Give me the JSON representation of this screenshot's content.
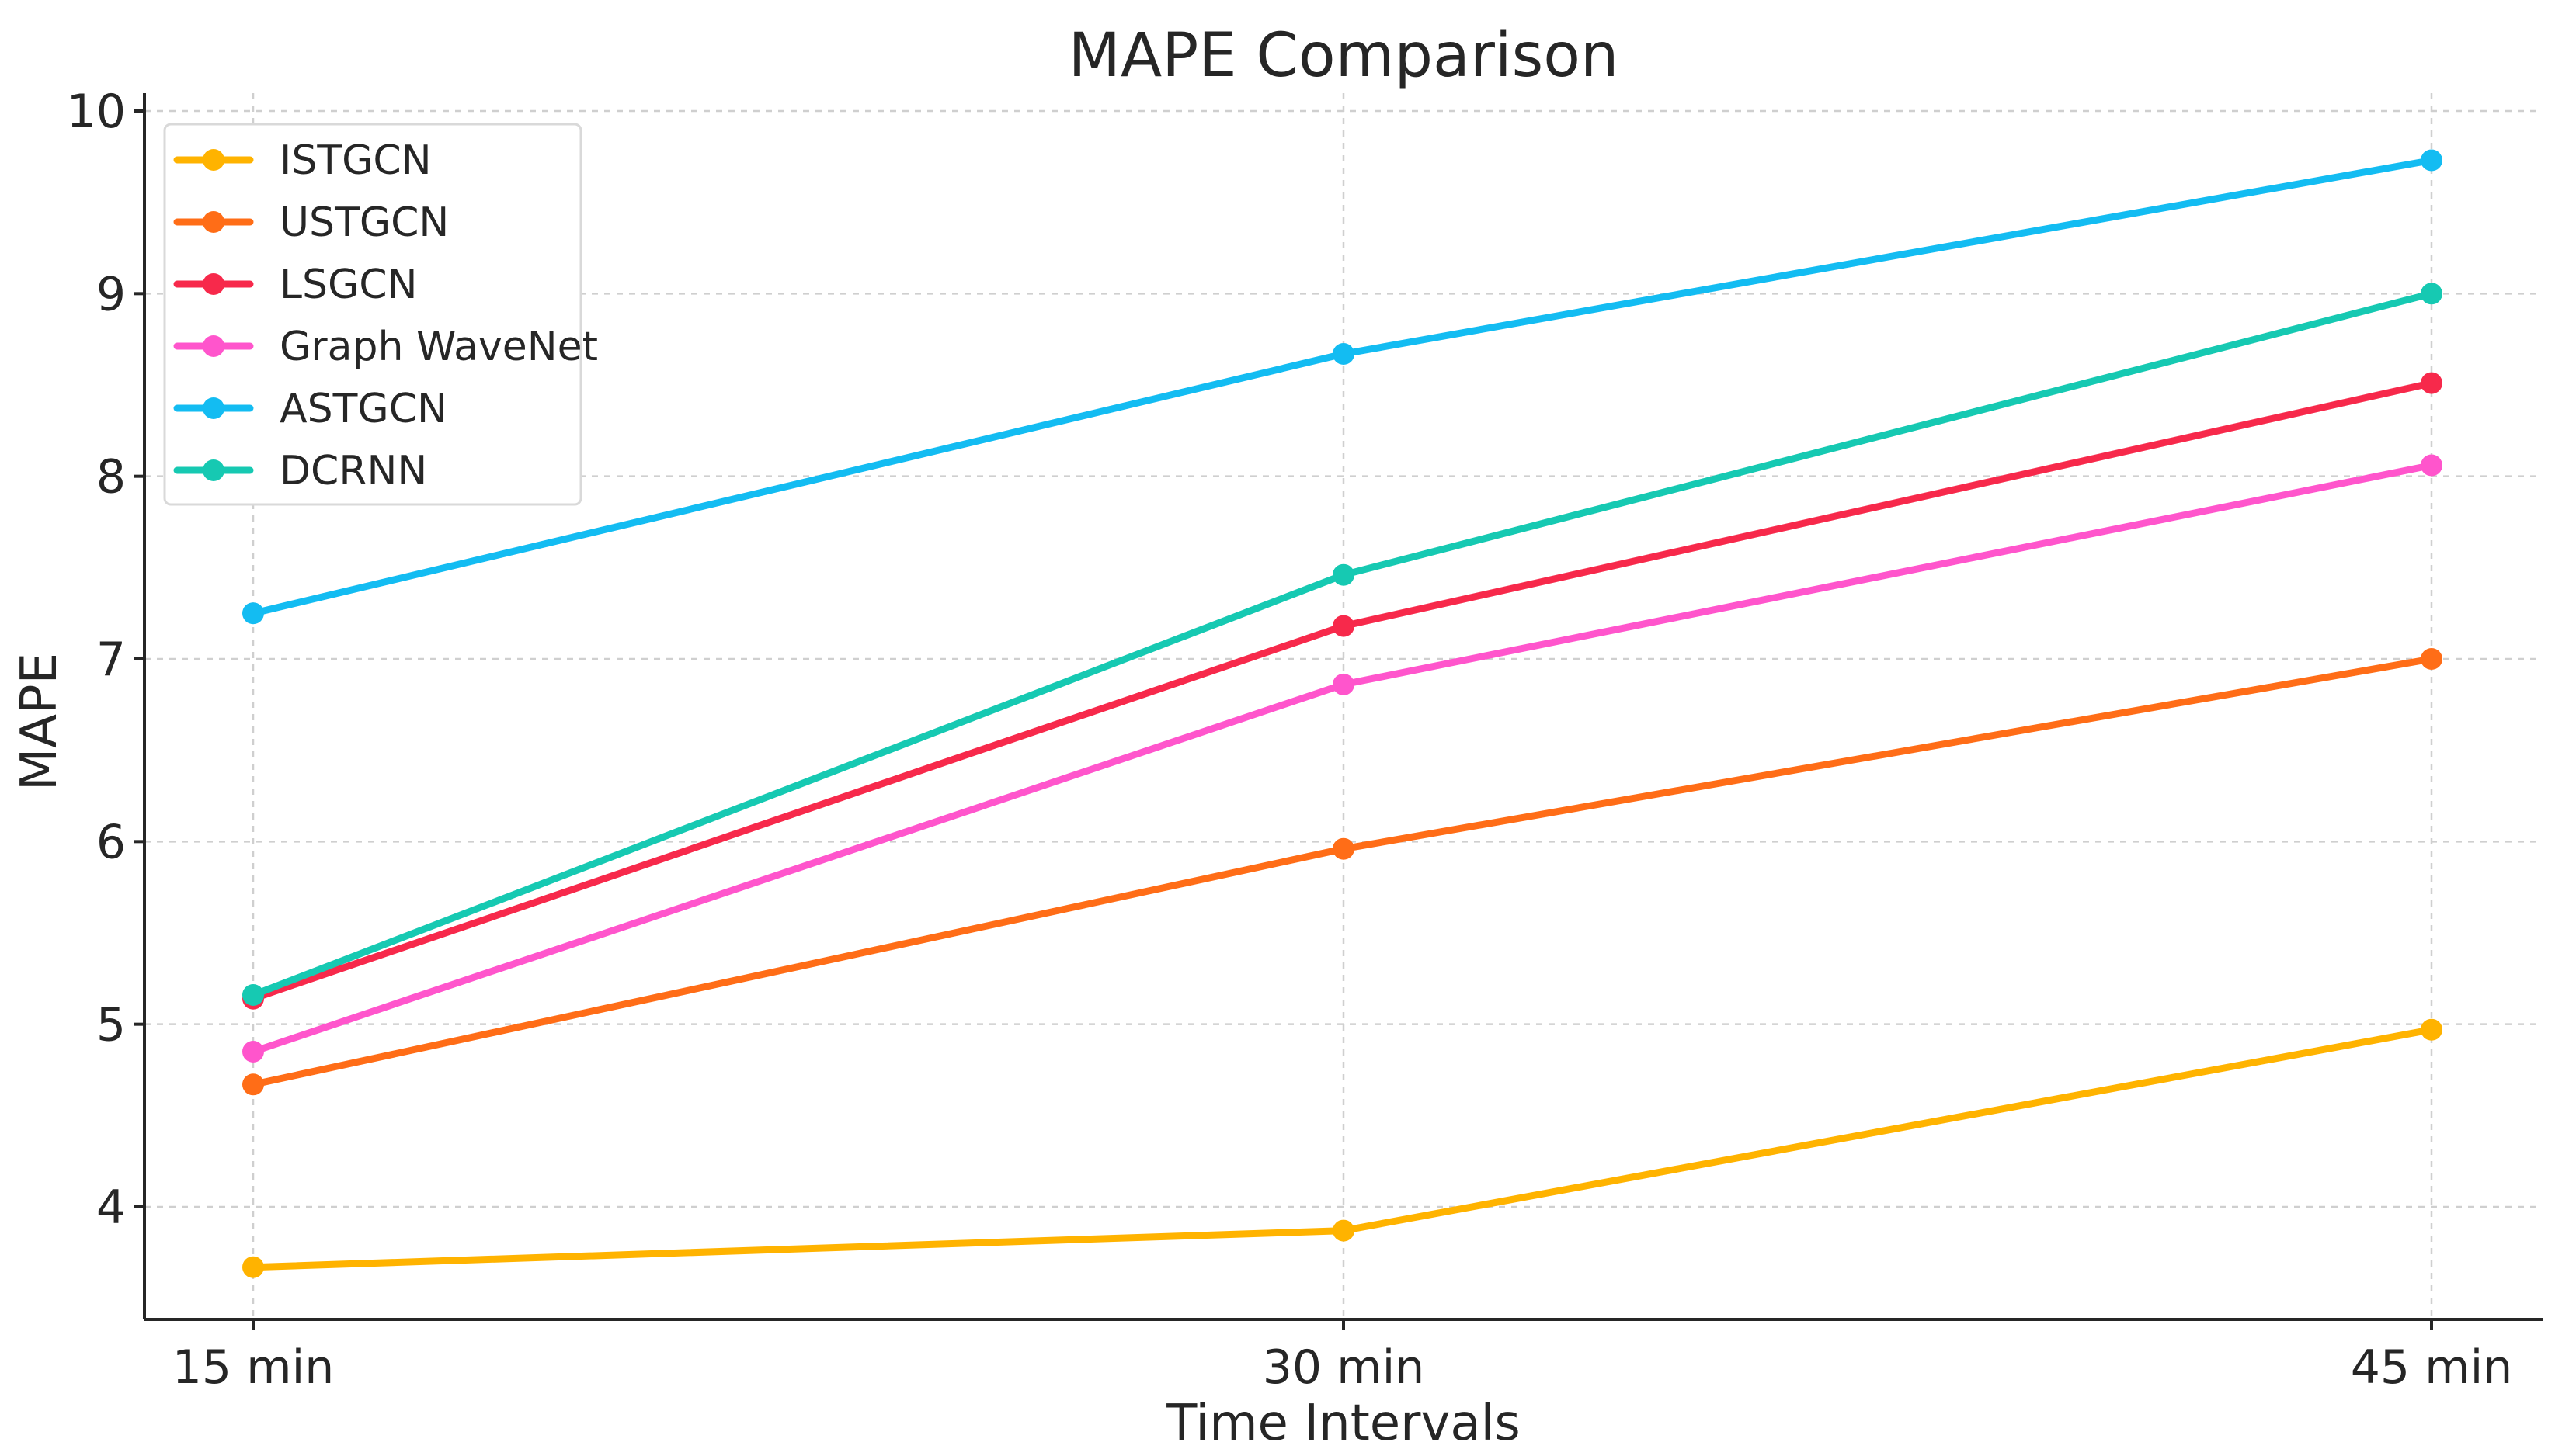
{
  "chart_data": {
    "type": "line",
    "title": "MAPE Comparison",
    "xlabel": "Time Intervals",
    "ylabel": "MAPE",
    "categories": [
      "15 min",
      "30 min",
      "45 min"
    ],
    "ylim": [
      3.35,
      10.0
    ],
    "yticks": [
      4,
      5,
      6,
      7,
      8,
      9,
      10
    ],
    "grid": true,
    "legend_position": "top-left",
    "series": [
      {
        "name": "ISTGCN",
        "color": "#FFB300",
        "values": [
          3.67,
          3.87,
          4.97
        ]
      },
      {
        "name": "USTGCN",
        "color": "#FF6D17",
        "values": [
          4.67,
          5.96,
          7.0
        ]
      },
      {
        "name": "LSGCN",
        "color": "#F7294B",
        "values": [
          5.14,
          7.18,
          8.51
        ]
      },
      {
        "name": "Graph WaveNet",
        "color": "#FF55CC",
        "values": [
          4.85,
          6.86,
          8.06
        ]
      },
      {
        "name": "ASTGCN",
        "color": "#13BCF2",
        "values": [
          7.25,
          8.67,
          9.73
        ]
      },
      {
        "name": "DCRNN",
        "color": "#16C9B2",
        "values": [
          5.16,
          7.46,
          9.0
        ]
      }
    ]
  }
}
